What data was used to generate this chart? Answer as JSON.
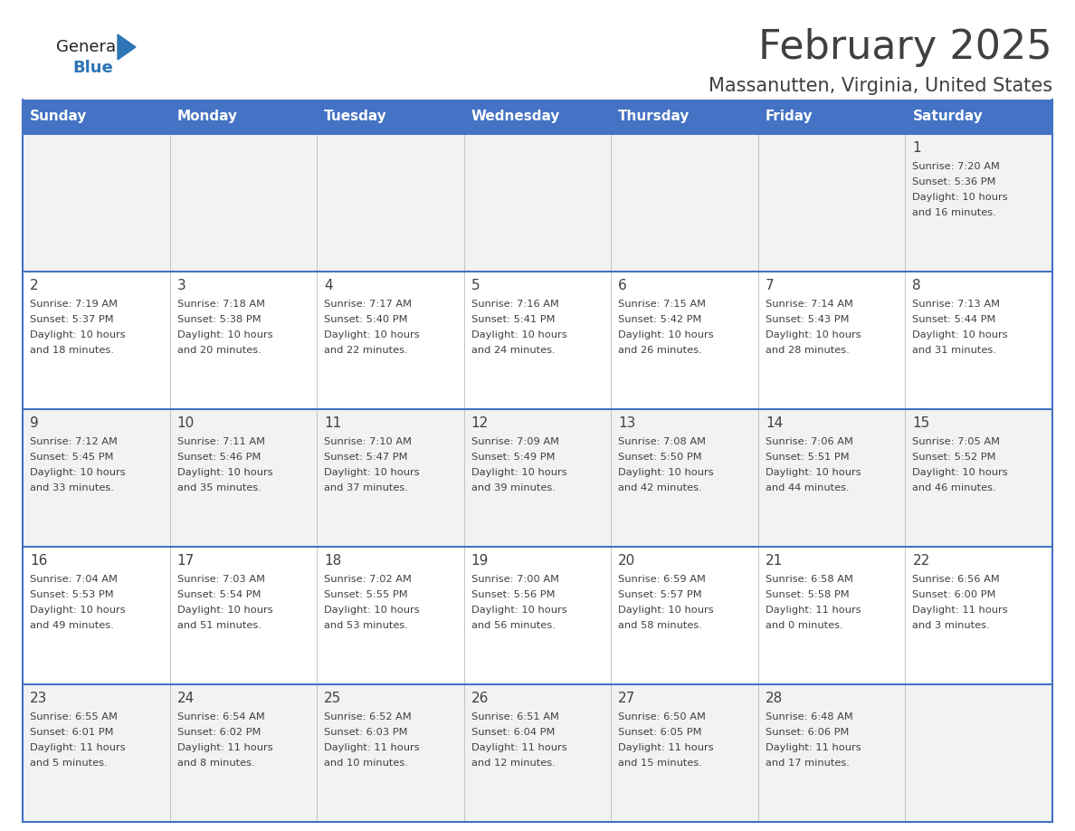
{
  "title": "February 2025",
  "subtitle": "Massanutten, Virginia, United States",
  "header_bg": "#4472C4",
  "header_text_color": "#FFFFFF",
  "day_headers": [
    "Sunday",
    "Monday",
    "Tuesday",
    "Wednesday",
    "Thursday",
    "Friday",
    "Saturday"
  ],
  "bg_color": "#FFFFFF",
  "cell_bg_light": "#F2F2F2",
  "cell_bg_white": "#FFFFFF",
  "border_color": "#4472C4",
  "text_color": "#404040",
  "day_num_color": "#404040",
  "logo_color_general": "#222222",
  "logo_color_blue": "#2E75B6",
  "logo_triangle_color": "#2E75B6",
  "calendar_data": [
    [
      null,
      null,
      null,
      null,
      null,
      null,
      {
        "day": "1",
        "sunrise": "7:20 AM",
        "sunset": "5:36 PM",
        "daylight_h": "10 hours",
        "daylight_m": "and 16 minutes."
      }
    ],
    [
      {
        "day": "2",
        "sunrise": "7:19 AM",
        "sunset": "5:37 PM",
        "daylight_h": "10 hours",
        "daylight_m": "and 18 minutes."
      },
      {
        "day": "3",
        "sunrise": "7:18 AM",
        "sunset": "5:38 PM",
        "daylight_h": "10 hours",
        "daylight_m": "and 20 minutes."
      },
      {
        "day": "4",
        "sunrise": "7:17 AM",
        "sunset": "5:40 PM",
        "daylight_h": "10 hours",
        "daylight_m": "and 22 minutes."
      },
      {
        "day": "5",
        "sunrise": "7:16 AM",
        "sunset": "5:41 PM",
        "daylight_h": "10 hours",
        "daylight_m": "and 24 minutes."
      },
      {
        "day": "6",
        "sunrise": "7:15 AM",
        "sunset": "5:42 PM",
        "daylight_h": "10 hours",
        "daylight_m": "and 26 minutes."
      },
      {
        "day": "7",
        "sunrise": "7:14 AM",
        "sunset": "5:43 PM",
        "daylight_h": "10 hours",
        "daylight_m": "and 28 minutes."
      },
      {
        "day": "8",
        "sunrise": "7:13 AM",
        "sunset": "5:44 PM",
        "daylight_h": "10 hours",
        "daylight_m": "and 31 minutes."
      }
    ],
    [
      {
        "day": "9",
        "sunrise": "7:12 AM",
        "sunset": "5:45 PM",
        "daylight_h": "10 hours",
        "daylight_m": "and 33 minutes."
      },
      {
        "day": "10",
        "sunrise": "7:11 AM",
        "sunset": "5:46 PM",
        "daylight_h": "10 hours",
        "daylight_m": "and 35 minutes."
      },
      {
        "day": "11",
        "sunrise": "7:10 AM",
        "sunset": "5:47 PM",
        "daylight_h": "10 hours",
        "daylight_m": "and 37 minutes."
      },
      {
        "day": "12",
        "sunrise": "7:09 AM",
        "sunset": "5:49 PM",
        "daylight_h": "10 hours",
        "daylight_m": "and 39 minutes."
      },
      {
        "day": "13",
        "sunrise": "7:08 AM",
        "sunset": "5:50 PM",
        "daylight_h": "10 hours",
        "daylight_m": "and 42 minutes."
      },
      {
        "day": "14",
        "sunrise": "7:06 AM",
        "sunset": "5:51 PM",
        "daylight_h": "10 hours",
        "daylight_m": "and 44 minutes."
      },
      {
        "day": "15",
        "sunrise": "7:05 AM",
        "sunset": "5:52 PM",
        "daylight_h": "10 hours",
        "daylight_m": "and 46 minutes."
      }
    ],
    [
      {
        "day": "16",
        "sunrise": "7:04 AM",
        "sunset": "5:53 PM",
        "daylight_h": "10 hours",
        "daylight_m": "and 49 minutes."
      },
      {
        "day": "17",
        "sunrise": "7:03 AM",
        "sunset": "5:54 PM",
        "daylight_h": "10 hours",
        "daylight_m": "and 51 minutes."
      },
      {
        "day": "18",
        "sunrise": "7:02 AM",
        "sunset": "5:55 PM",
        "daylight_h": "10 hours",
        "daylight_m": "and 53 minutes."
      },
      {
        "day": "19",
        "sunrise": "7:00 AM",
        "sunset": "5:56 PM",
        "daylight_h": "10 hours",
        "daylight_m": "and 56 minutes."
      },
      {
        "day": "20",
        "sunrise": "6:59 AM",
        "sunset": "5:57 PM",
        "daylight_h": "10 hours",
        "daylight_m": "and 58 minutes."
      },
      {
        "day": "21",
        "sunrise": "6:58 AM",
        "sunset": "5:58 PM",
        "daylight_h": "11 hours",
        "daylight_m": "and 0 minutes."
      },
      {
        "day": "22",
        "sunrise": "6:56 AM",
        "sunset": "6:00 PM",
        "daylight_h": "11 hours",
        "daylight_m": "and 3 minutes."
      }
    ],
    [
      {
        "day": "23",
        "sunrise": "6:55 AM",
        "sunset": "6:01 PM",
        "daylight_h": "11 hours",
        "daylight_m": "and 5 minutes."
      },
      {
        "day": "24",
        "sunrise": "6:54 AM",
        "sunset": "6:02 PM",
        "daylight_h": "11 hours",
        "daylight_m": "and 8 minutes."
      },
      {
        "day": "25",
        "sunrise": "6:52 AM",
        "sunset": "6:03 PM",
        "daylight_h": "11 hours",
        "daylight_m": "and 10 minutes."
      },
      {
        "day": "26",
        "sunrise": "6:51 AM",
        "sunset": "6:04 PM",
        "daylight_h": "11 hours",
        "daylight_m": "and 12 minutes."
      },
      {
        "day": "27",
        "sunrise": "6:50 AM",
        "sunset": "6:05 PM",
        "daylight_h": "11 hours",
        "daylight_m": "and 15 minutes."
      },
      {
        "day": "28",
        "sunrise": "6:48 AM",
        "sunset": "6:06 PM",
        "daylight_h": "11 hours",
        "daylight_m": "and 17 minutes."
      },
      null
    ]
  ]
}
